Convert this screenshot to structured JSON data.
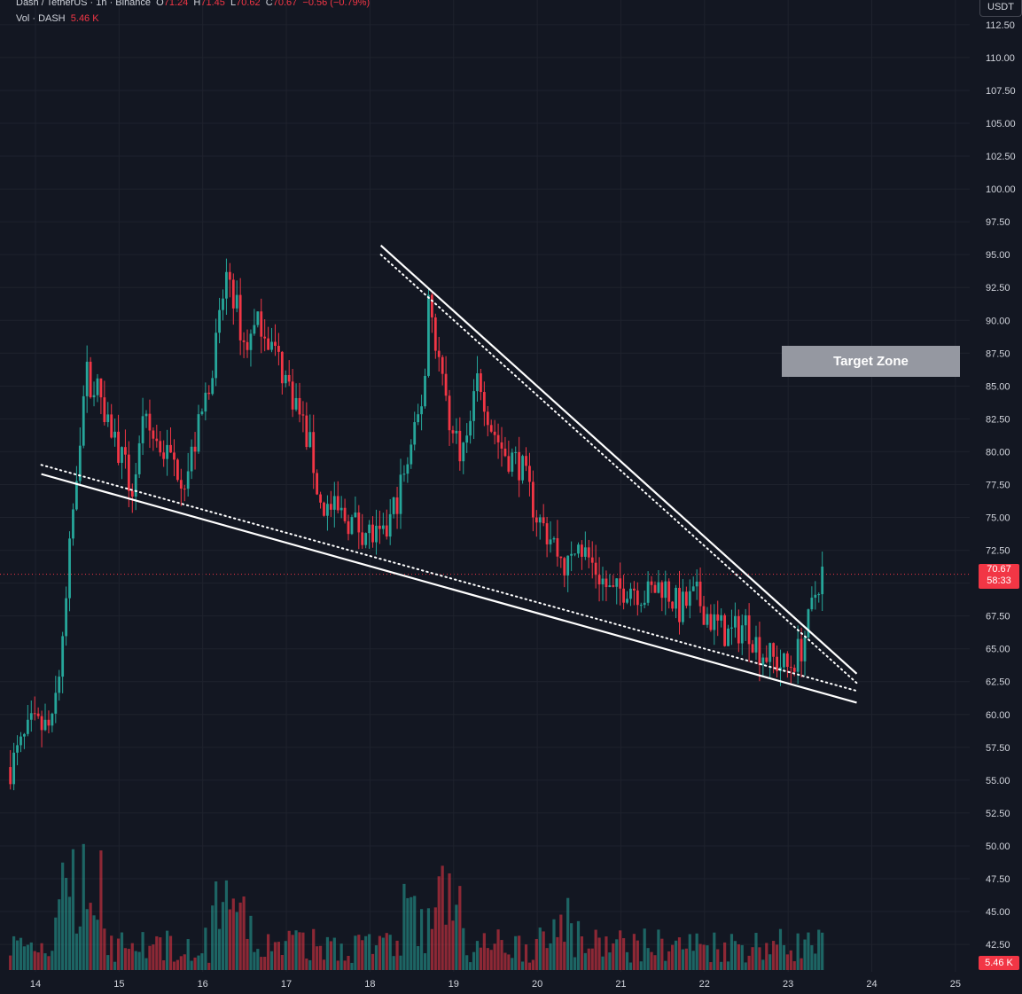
{
  "header": {
    "symbol": "Dash / TetherUS · 1h · Binance",
    "o_label": "O",
    "o": "71.24",
    "h_label": "H",
    "h": "71.45",
    "l_label": "L",
    "l": "70.62",
    "c_label": "C",
    "c": "70.67",
    "change": "−0.56 (−0.79%)",
    "vol_label": "Vol · DASH",
    "vol_value": "5.46 K"
  },
  "axis_unit": "USDT",
  "last_price_label": "70.67",
  "countdown_label": "58:33",
  "volume_badge": "5.46 K",
  "target_label": "Target Zone",
  "colors": {
    "bg": "#131722",
    "up": "#26a69a",
    "down": "#f23645",
    "grid": "#1e222d",
    "axis_text": "#d1d4dc"
  },
  "chart_data": {
    "type": "candlestick",
    "title": "Dash / TetherUS · 1h · Binance",
    "ylim": [
      40.55,
      113.3
    ],
    "price_ticks": [
      "112.50",
      "110.00",
      "107.50",
      "105.00",
      "102.50",
      "100.00",
      "97.50",
      "95.00",
      "92.50",
      "90.00",
      "87.50",
      "85.00",
      "82.50",
      "80.00",
      "77.50",
      "75.00",
      "72.50",
      "70.00",
      "67.50",
      "65.00",
      "62.50",
      "60.00",
      "57.50",
      "55.00",
      "52.50",
      "50.00",
      "47.50",
      "45.00",
      "42.50"
    ],
    "x_ticks": [
      "14",
      "15",
      "16",
      "17",
      "18",
      "19",
      "20",
      "21",
      "22",
      "23",
      "24",
      "25"
    ],
    "last_price": 70.67,
    "price_path": [
      {
        "day": 13.7,
        "price": 56
      },
      {
        "day": 13.95,
        "price": 59
      },
      {
        "day": 14.2,
        "price": 59
      },
      {
        "day": 14.35,
        "price": 67
      },
      {
        "day": 14.45,
        "price": 76
      },
      {
        "day": 14.6,
        "price": 86
      },
      {
        "day": 14.8,
        "price": 84
      },
      {
        "day": 15.0,
        "price": 80
      },
      {
        "day": 15.15,
        "price": 77
      },
      {
        "day": 15.3,
        "price": 82
      },
      {
        "day": 15.55,
        "price": 80
      },
      {
        "day": 15.8,
        "price": 78
      },
      {
        "day": 16.0,
        "price": 83
      },
      {
        "day": 16.15,
        "price": 88
      },
      {
        "day": 16.3,
        "price": 94
      },
      {
        "day": 16.5,
        "price": 88
      },
      {
        "day": 16.7,
        "price": 90
      },
      {
        "day": 16.9,
        "price": 87
      },
      {
        "day": 17.1,
        "price": 84
      },
      {
        "day": 17.3,
        "price": 80
      },
      {
        "day": 17.4,
        "price": 76
      },
      {
        "day": 17.7,
        "price": 75
      },
      {
        "day": 17.95,
        "price": 74
      },
      {
        "day": 18.15,
        "price": 73
      },
      {
        "day": 18.35,
        "price": 77
      },
      {
        "day": 18.5,
        "price": 80
      },
      {
        "day": 18.65,
        "price": 85
      },
      {
        "day": 18.7,
        "price": 92
      },
      {
        "day": 18.85,
        "price": 86
      },
      {
        "day": 19.0,
        "price": 81
      },
      {
        "day": 19.15,
        "price": 80
      },
      {
        "day": 19.3,
        "price": 86
      },
      {
        "day": 19.45,
        "price": 82
      },
      {
        "day": 19.6,
        "price": 80
      },
      {
        "day": 19.8,
        "price": 79
      },
      {
        "day": 20.0,
        "price": 75
      },
      {
        "day": 20.2,
        "price": 73
      },
      {
        "day": 20.35,
        "price": 71
      },
      {
        "day": 20.5,
        "price": 73
      },
      {
        "day": 20.7,
        "price": 71
      },
      {
        "day": 20.9,
        "price": 69
      },
      {
        "day": 21.1,
        "price": 70
      },
      {
        "day": 21.3,
        "price": 69
      },
      {
        "day": 21.5,
        "price": 70
      },
      {
        "day": 21.7,
        "price": 68
      },
      {
        "day": 21.9,
        "price": 69
      },
      {
        "day": 22.1,
        "price": 67
      },
      {
        "day": 22.3,
        "price": 66
      },
      {
        "day": 22.5,
        "price": 67
      },
      {
        "day": 22.65,
        "price": 65
      },
      {
        "day": 22.85,
        "price": 64
      },
      {
        "day": 23.0,
        "price": 63.5
      },
      {
        "day": 23.15,
        "price": 65
      },
      {
        "day": 23.25,
        "price": 67
      },
      {
        "day": 23.35,
        "price": 70
      },
      {
        "day": 23.42,
        "price": 71
      }
    ],
    "trendlines": [
      {
        "style": "solid",
        "points": [
          {
            "day": 14.07,
            "price": 78.3
          },
          {
            "day": 23.82,
            "price": 60.9
          }
        ]
      },
      {
        "style": "dotted",
        "points": [
          {
            "day": 14.07,
            "price": 79.0
          },
          {
            "day": 23.82,
            "price": 61.8
          }
        ]
      },
      {
        "style": "solid",
        "points": [
          {
            "day": 18.13,
            "price": 95.7
          },
          {
            "day": 23.82,
            "price": 63.1
          }
        ]
      },
      {
        "style": "dotted",
        "points": [
          {
            "day": 18.13,
            "price": 95.0
          },
          {
            "day": 23.82,
            "price": 62.4
          }
        ]
      }
    ],
    "target_zone": {
      "label": "Target Zone",
      "price_top": 88.6,
      "price_bottom": 86.2
    }
  }
}
